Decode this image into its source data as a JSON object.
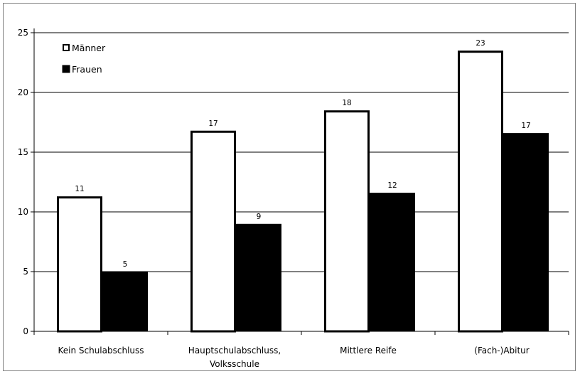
{
  "chart_data": {
    "type": "bar",
    "title": "",
    "xlabel": "",
    "ylabel": "",
    "ylim": [
      0,
      25
    ],
    "yticks": [
      0,
      5,
      10,
      15,
      20,
      25
    ],
    "grid": true,
    "legend_position": "top-left",
    "categories": [
      [
        "Kein Schulabschluss"
      ],
      [
        "Hauptschulabschluss,",
        "Volksschule"
      ],
      [
        "Mittlere Reife"
      ],
      [
        "(Fach-)Abitur"
      ]
    ],
    "series": [
      {
        "name": "Männer",
        "values": [
          11.3,
          16.8,
          18.5,
          23.5
        ],
        "labels": [
          "11",
          "17",
          "18",
          "23"
        ],
        "fill": "#ffffff",
        "stroke": "#000000"
      },
      {
        "name": "Frauen",
        "values": [
          5.0,
          9.0,
          11.6,
          16.6
        ],
        "labels": [
          "5",
          "9",
          "12",
          "17"
        ],
        "fill": "#000000",
        "stroke": "#000000"
      }
    ]
  }
}
